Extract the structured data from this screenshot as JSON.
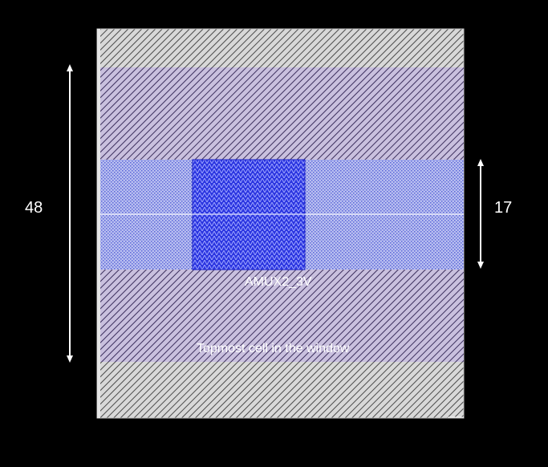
{
  "dimensions": {
    "total_height_label": "48",
    "inner_height_label": "17"
  },
  "cell": {
    "name": "AMUX2_3V",
    "caption": "Topmost cell in the window"
  },
  "colors": {
    "background": "#000000",
    "outer_fill": "#d8d8d8",
    "outer_hatch": "#4a4a4a",
    "purple_band_fill": "#c9c0de",
    "purple_band_hatch": "#3c2f5e",
    "blue_band_fill": "#b9bff0",
    "blue_band_dots": "#5a66d8",
    "center_block_fill": "#2b35e0",
    "center_block_hatch": "#9aa2ff",
    "divider_line": "#ffffff",
    "arrow": "#ffffff"
  }
}
